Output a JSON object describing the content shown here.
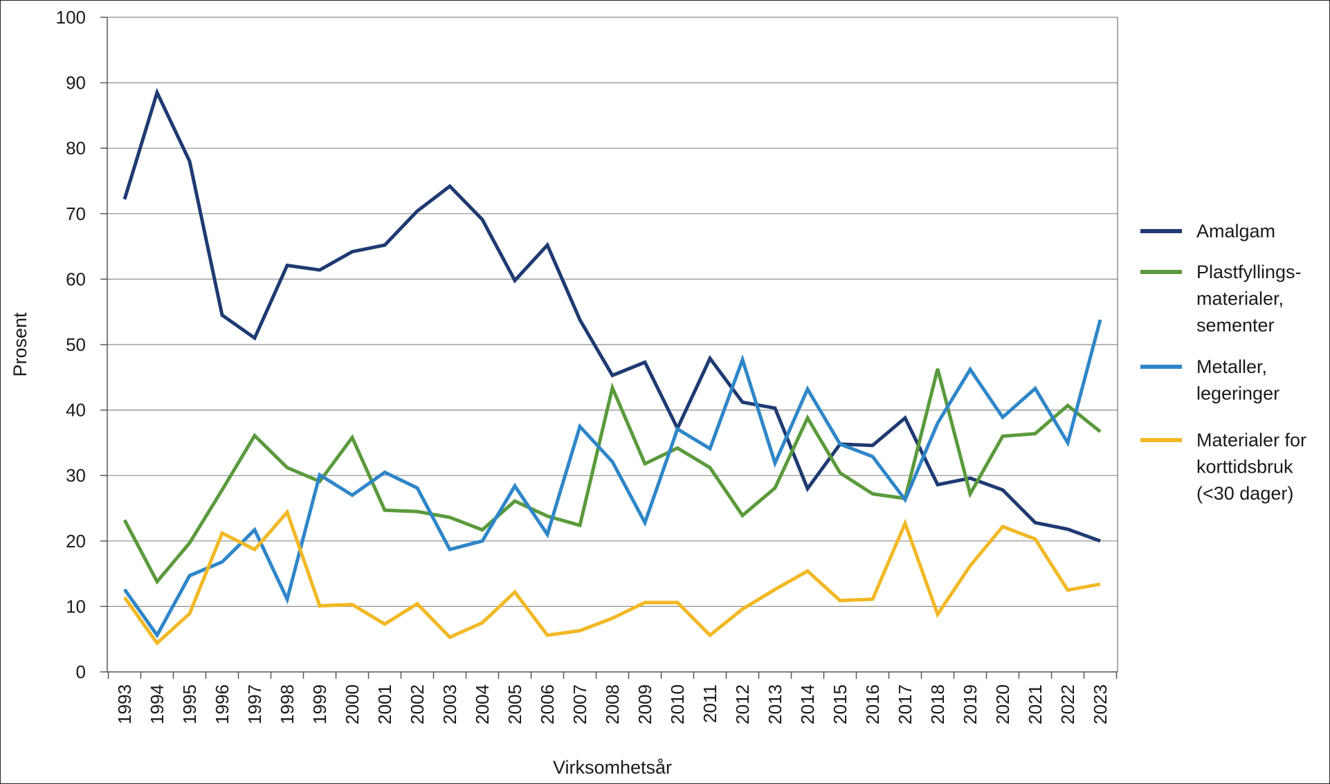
{
  "chart_data": {
    "type": "line",
    "title": "",
    "xlabel": "Virksomhetsår",
    "ylabel": "Prosent",
    "ylim": [
      0,
      100
    ],
    "yticks": [
      0,
      10,
      20,
      30,
      40,
      50,
      60,
      70,
      80,
      90,
      100
    ],
    "grid": true,
    "legend_position": "right",
    "categories": [
      "1993",
      "1994",
      "1995",
      "1996",
      "1997",
      "1998",
      "1999",
      "2000",
      "2001",
      "2002",
      "2003",
      "2004",
      "2005",
      "2006",
      "2007",
      "2008",
      "2009",
      "2010",
      "2011",
      "2012",
      "2013",
      "2014",
      "2015",
      "2016",
      "2017",
      "2018",
      "2019",
      "2020",
      "2021",
      "2022",
      "2023"
    ],
    "series": [
      {
        "name": "Amalgam",
        "color": "#1f3a73",
        "values": [
          72.2,
          88.5,
          78.0,
          54.5,
          51.0,
          62.1,
          61.4,
          64.2,
          65.2,
          70.4,
          74.2,
          69.1,
          59.8,
          65.2,
          53.8,
          45.3,
          47.3,
          37.2,
          47.9,
          41.2,
          40.3,
          28.0,
          34.8,
          34.6,
          38.8,
          28.6,
          29.6,
          27.8,
          22.8,
          21.8,
          20.0
        ]
      },
      {
        "name": "Plastfyllings-materialer, sementer",
        "legend_lines": [
          "Plastfyllings-",
          "materialer,",
          "sementer"
        ],
        "color": "#5a9a3c",
        "values": [
          23.2,
          13.8,
          19.7,
          27.8,
          36.1,
          31.2,
          29.1,
          35.8,
          24.7,
          24.5,
          23.6,
          21.7,
          26.1,
          23.8,
          22.4,
          43.4,
          31.8,
          34.2,
          31.2,
          23.9,
          28.1,
          38.8,
          30.4,
          27.2,
          26.5,
          46.3,
          27.2,
          36.0,
          36.4,
          40.7,
          36.7
        ]
      },
      {
        "name": "Metaller, legeringer",
        "legend_lines": [
          "Metaller,",
          "legeringer"
        ],
        "color": "#2f86c8",
        "values": [
          12.6,
          5.6,
          14.7,
          16.8,
          21.7,
          11.1,
          30.1,
          27.0,
          30.5,
          28.1,
          18.7,
          20.0,
          28.4,
          21.0,
          37.5,
          32.1,
          22.8,
          37.1,
          34.1,
          47.7,
          31.9,
          43.2,
          34.8,
          32.9,
          26.3,
          38.0,
          46.2,
          38.9,
          43.3,
          35.0,
          53.8
        ]
      },
      {
        "name": "Materialer for korttidsbruk (<30 dager)",
        "legend_lines": [
          "Materialer for",
          "korttidsbruk",
          "(<30 dager)"
        ],
        "color": "#f2b825",
        "values": [
          11.4,
          4.4,
          8.9,
          21.2,
          18.7,
          24.4,
          10.1,
          10.3,
          7.3,
          10.4,
          5.3,
          7.5,
          12.2,
          5.6,
          6.3,
          8.2,
          10.6,
          10.6,
          5.6,
          9.6,
          12.6,
          15.4,
          10.9,
          11.1,
          22.7,
          8.8,
          16.2,
          22.2,
          20.3,
          12.5,
          13.4
        ]
      }
    ]
  }
}
